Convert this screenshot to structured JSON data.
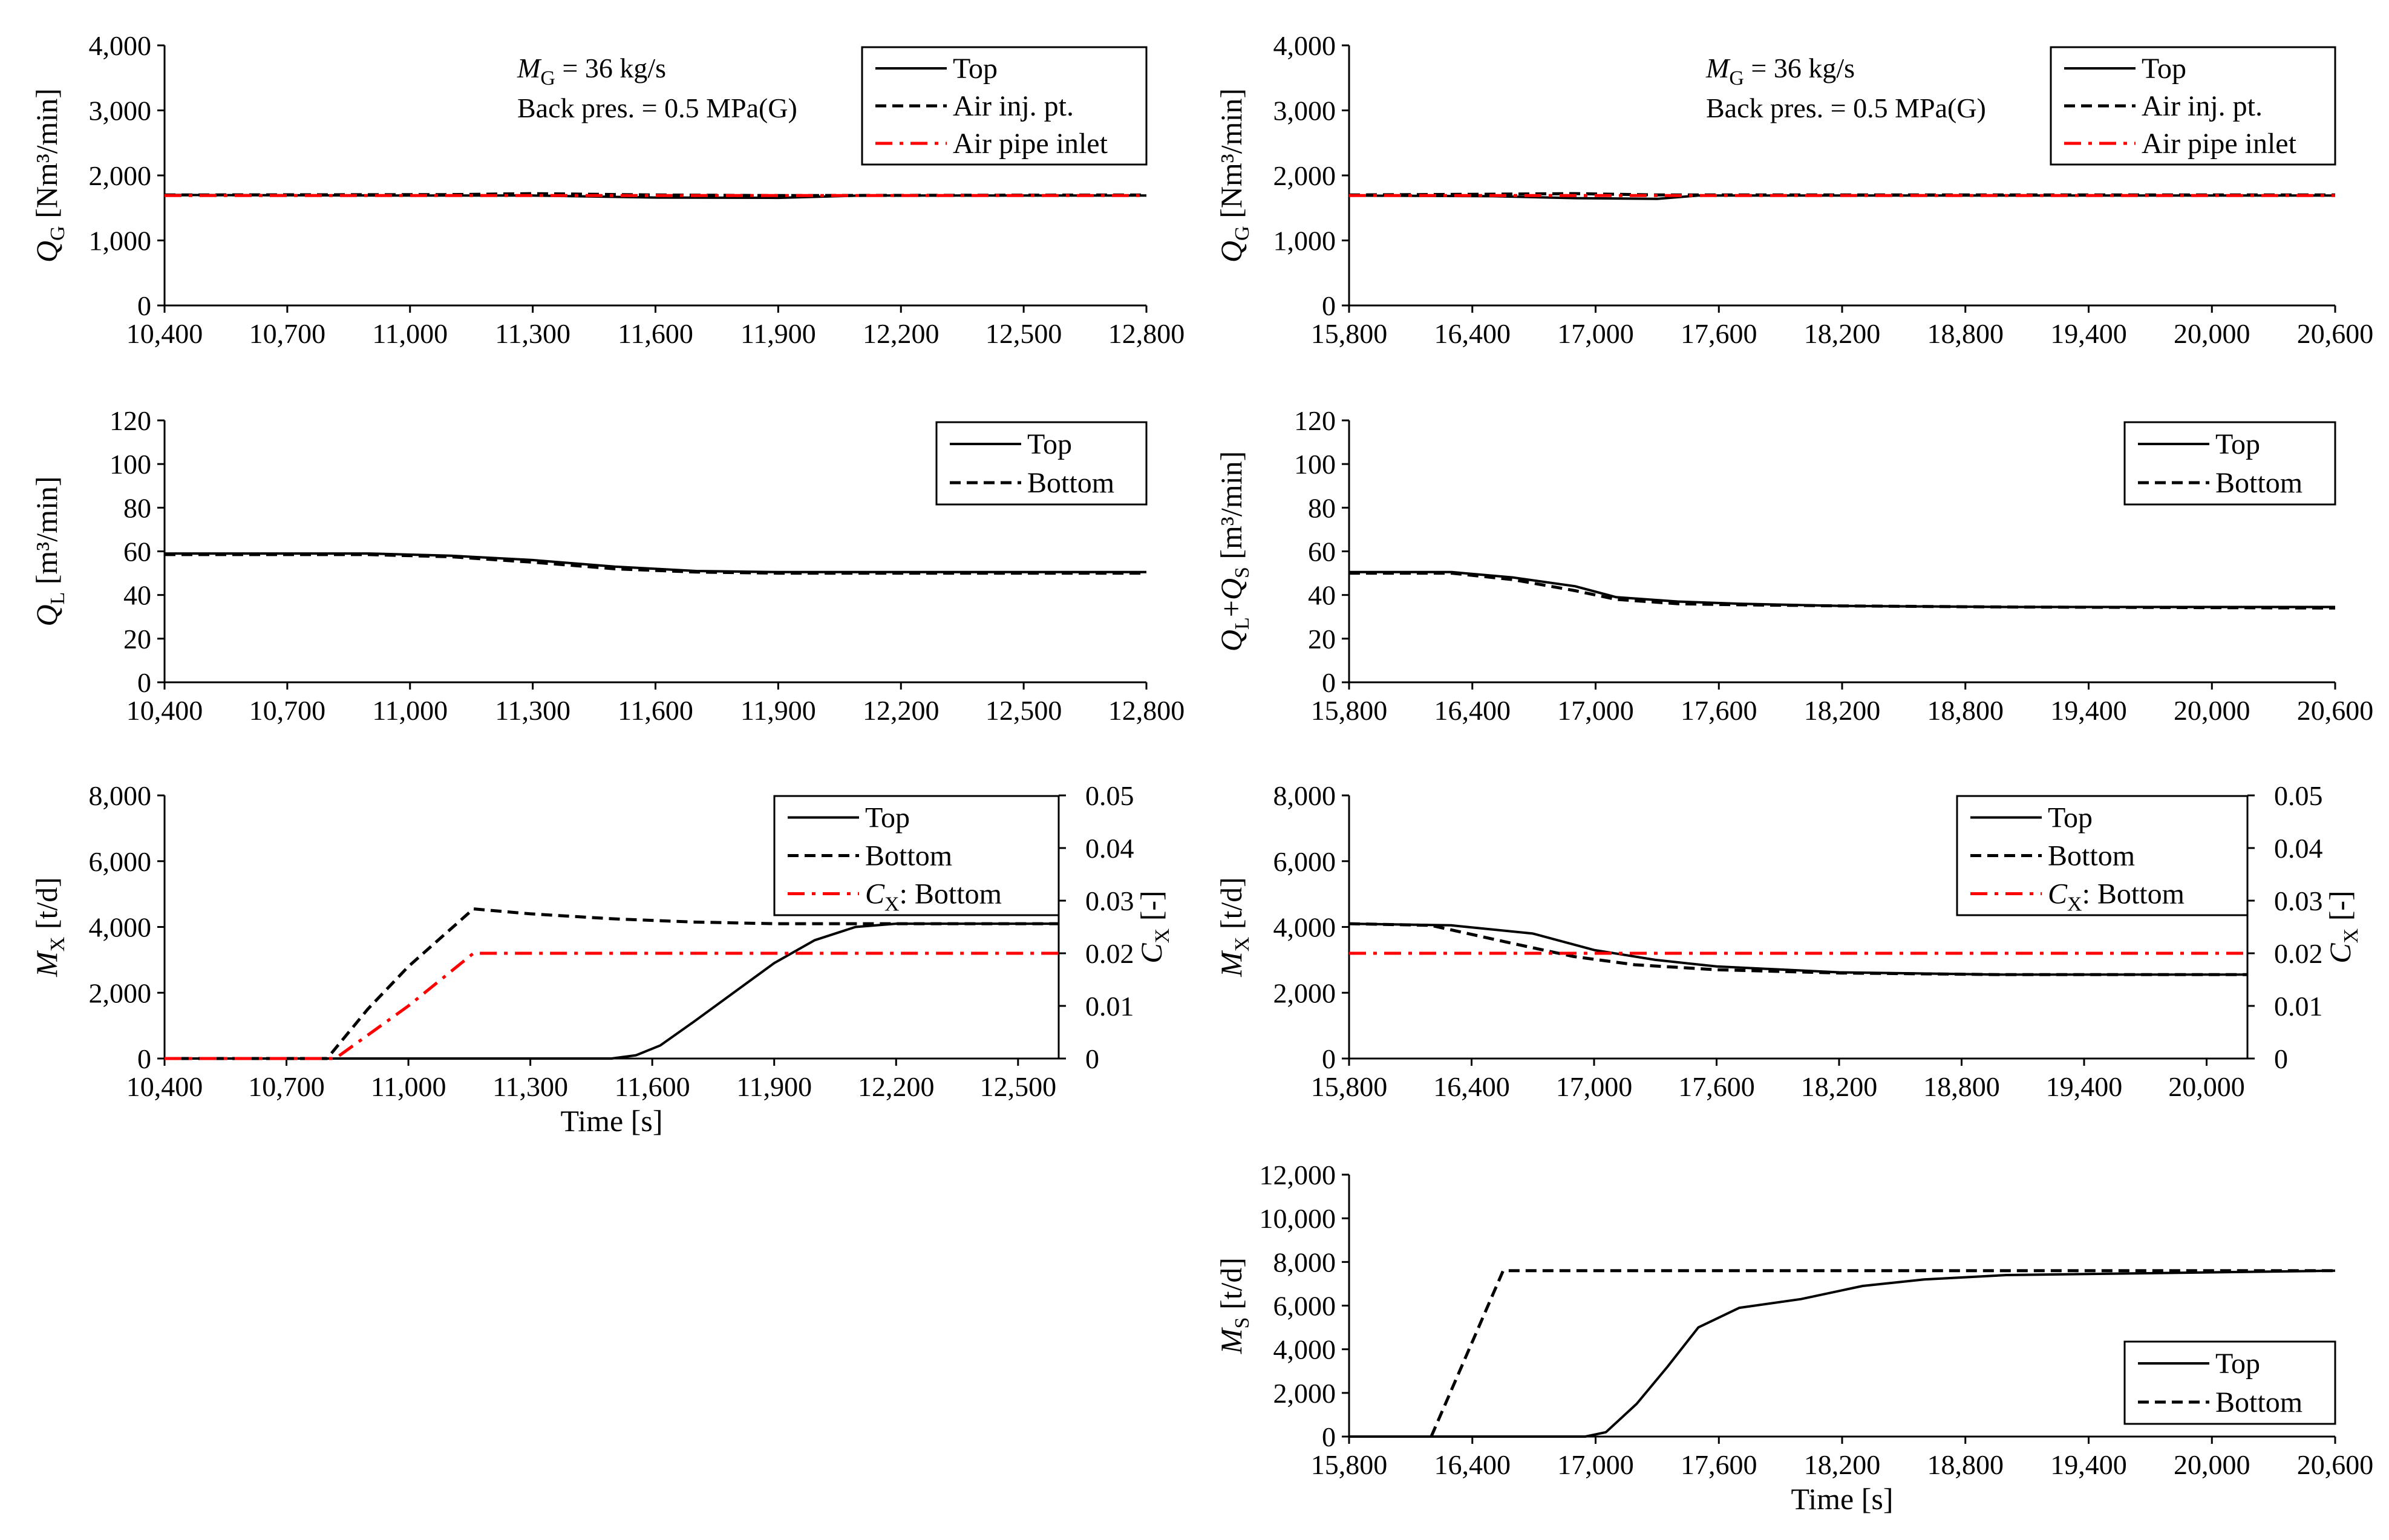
{
  "chart_data": [
    {
      "id": "qg_left",
      "type": "line",
      "ylabel": {
        "main": "Q",
        "sub": "G",
        "unit": " [Nm³/min]"
      },
      "xlim": [
        10400,
        12800
      ],
      "x_ticks": [
        10400,
        10700,
        11000,
        11300,
        11600,
        11900,
        12200,
        12500,
        12800
      ],
      "ylim": [
        0,
        4000
      ],
      "y_ticks": [
        0,
        1000,
        2000,
        3000,
        4000
      ],
      "legend": "top-right",
      "annotation": {
        "line1_var": "M",
        "line1_sub": "G",
        "line1_rest": " = 36 kg/s",
        "line2": "Back pres. = 0.5 MPa(G)"
      },
      "series": [
        {
          "name": "Top",
          "style": "solid",
          "color": "#000000",
          "points": [
            [
              10400,
              1700
            ],
            [
              11000,
              1690
            ],
            [
              11300,
              1690
            ],
            [
              11600,
              1660
            ],
            [
              11900,
              1655
            ],
            [
              12100,
              1690
            ],
            [
              12800,
              1690
            ]
          ]
        },
        {
          "name": "Air inj. pt.",
          "style": "dash",
          "color": "#000000",
          "points": [
            [
              10400,
              1700
            ],
            [
              11100,
              1705
            ],
            [
              11300,
              1720
            ],
            [
              11600,
              1700
            ],
            [
              11900,
              1690
            ],
            [
              12800,
              1700
            ]
          ]
        },
        {
          "name": "Air pipe inlet",
          "style": "dashdot",
          "color": "#ff0000",
          "points": [
            [
              10400,
              1690
            ],
            [
              12800,
              1690
            ]
          ]
        }
      ]
    },
    {
      "id": "qg_right",
      "type": "line",
      "ylabel": {
        "main": "Q",
        "sub": "G",
        "unit": " [Nm³/min]"
      },
      "xlim": [
        15800,
        20600
      ],
      "x_ticks": [
        15800,
        16400,
        17000,
        17600,
        18200,
        18800,
        19400,
        20000,
        20600
      ],
      "ylim": [
        0,
        4000
      ],
      "y_ticks": [
        0,
        1000,
        2000,
        3000,
        4000
      ],
      "legend": "top-right",
      "annotation": {
        "line1_var": "M",
        "line1_sub": "G",
        "line1_rest": " = 36 kg/s",
        "line2": "Back pres. = 0.5 MPa(G)"
      },
      "series": [
        {
          "name": "Top",
          "style": "solid",
          "color": "#000000",
          "points": [
            [
              15800,
              1690
            ],
            [
              16500,
              1680
            ],
            [
              16900,
              1650
            ],
            [
              17300,
              1640
            ],
            [
              17500,
              1690
            ],
            [
              20600,
              1690
            ]
          ]
        },
        {
          "name": "Air inj. pt.",
          "style": "dash",
          "color": "#000000",
          "points": [
            [
              15800,
              1700
            ],
            [
              16400,
              1710
            ],
            [
              16900,
              1720
            ],
            [
              17300,
              1700
            ],
            [
              20600,
              1700
            ]
          ]
        },
        {
          "name": "Air pipe inlet",
          "style": "dashdot",
          "color": "#ff0000",
          "points": [
            [
              15800,
              1690
            ],
            [
              20600,
              1690
            ]
          ]
        }
      ]
    },
    {
      "id": "ql_left",
      "type": "line",
      "ylabel": {
        "main": "Q",
        "sub": "L",
        "unit": " [m³/min]"
      },
      "xlim": [
        10400,
        12800
      ],
      "x_ticks": [
        10400,
        10700,
        11000,
        11300,
        11600,
        11900,
        12200,
        12500,
        12800
      ],
      "ylim": [
        0,
        120
      ],
      "y_ticks": [
        0,
        20,
        40,
        60,
        80,
        100,
        120
      ],
      "legend": "top-right",
      "series": [
        {
          "name": "Top",
          "style": "solid",
          "color": "#000000",
          "points": [
            [
              10400,
              59
            ],
            [
              10900,
              59
            ],
            [
              11100,
              58
            ],
            [
              11300,
              56
            ],
            [
              11500,
              53
            ],
            [
              11700,
              51
            ],
            [
              11900,
              50.5
            ],
            [
              12800,
              50.5
            ]
          ]
        },
        {
          "name": "Bottom",
          "style": "dash",
          "color": "#000000",
          "points": [
            [
              10400,
              58.5
            ],
            [
              10900,
              58.5
            ],
            [
              11100,
              57.5
            ],
            [
              11300,
              55
            ],
            [
              11500,
              52
            ],
            [
              11700,
              50.5
            ],
            [
              11900,
              50
            ],
            [
              12800,
              50
            ]
          ]
        }
      ]
    },
    {
      "id": "qlqs_right",
      "type": "line",
      "ylabel": {
        "main": "Q",
        "sub": "L",
        "plus": "+",
        "main2": "Q",
        "sub2": "S",
        "unit": " [m³/min]"
      },
      "xlim": [
        15800,
        20600
      ],
      "x_ticks": [
        15800,
        16400,
        17000,
        17600,
        18200,
        18800,
        19400,
        20000,
        20600
      ],
      "ylim": [
        0,
        120
      ],
      "y_ticks": [
        0,
        20,
        40,
        60,
        80,
        100,
        120
      ],
      "legend": "top-right",
      "series": [
        {
          "name": "Top",
          "style": "solid",
          "color": "#000000",
          "points": [
            [
              15800,
              50.5
            ],
            [
              16300,
              50.5
            ],
            [
              16600,
              48
            ],
            [
              16900,
              44
            ],
            [
              17100,
              39
            ],
            [
              17400,
              37
            ],
            [
              17700,
              36
            ],
            [
              18200,
              35
            ],
            [
              19000,
              34.5
            ],
            [
              20600,
              34.5
            ]
          ]
        },
        {
          "name": "Bottom",
          "style": "dash",
          "color": "#000000",
          "points": [
            [
              15800,
              50
            ],
            [
              16300,
              50
            ],
            [
              16600,
              47
            ],
            [
              16900,
              42
            ],
            [
              17100,
              38
            ],
            [
              17400,
              36
            ],
            [
              17700,
              35.5
            ],
            [
              18200,
              35
            ],
            [
              19000,
              34.5
            ],
            [
              20600,
              34
            ]
          ]
        }
      ]
    },
    {
      "id": "mx_left",
      "type": "line",
      "ylabel": {
        "main": "M",
        "sub": "X",
        "unit": " [t/d]"
      },
      "y2label": {
        "main": "C",
        "sub": "X",
        "unit": " [-]"
      },
      "xlim": [
        10400,
        12600
      ],
      "x_ticks": [
        10400,
        10700,
        11000,
        11300,
        11600,
        11900,
        12200,
        12500
      ],
      "ylim": [
        0,
        8000
      ],
      "y_ticks": [
        0,
        2000,
        4000,
        6000,
        8000
      ],
      "y2lim": [
        0,
        0.05
      ],
      "y2_ticks": [
        "0",
        "0.01",
        "0.02",
        "0.03",
        "0.04",
        "0.05"
      ],
      "xlabel": "Time [s]",
      "legend": "top-right",
      "series": [
        {
          "name": "Top",
          "style": "solid",
          "color": "#000000",
          "axis": "y",
          "points": [
            [
              10400,
              0
            ],
            [
              11500,
              0
            ],
            [
              11560,
              100
            ],
            [
              11620,
              400
            ],
            [
              11700,
              1100
            ],
            [
              11800,
              2000
            ],
            [
              11900,
              2900
            ],
            [
              12000,
              3600
            ],
            [
              12100,
              4000
            ],
            [
              12200,
              4100
            ],
            [
              12600,
              4100
            ]
          ]
        },
        {
          "name": "Bottom",
          "style": "dash",
          "color": "#000000",
          "axis": "y",
          "points": [
            [
              10400,
              0
            ],
            [
              10800,
              0
            ],
            [
              10900,
              1500
            ],
            [
              11000,
              2800
            ],
            [
              11160,
              4550
            ],
            [
              11300,
              4400
            ],
            [
              11500,
              4250
            ],
            [
              11700,
              4150
            ],
            [
              11900,
              4100
            ],
            [
              12600,
              4100
            ]
          ]
        },
        {
          "name": "C",
          "name_sub": "X",
          "name_rest": ": Bottom",
          "style": "dashdot",
          "color": "#ff0000",
          "axis": "y2",
          "points": [
            [
              10400,
              0
            ],
            [
              10820,
              0
            ],
            [
              11000,
              0.01
            ],
            [
              11160,
              0.02
            ],
            [
              12600,
              0.02
            ]
          ]
        }
      ]
    },
    {
      "id": "mx_right",
      "type": "line",
      "ylabel": {
        "main": "M",
        "sub": "X",
        "unit": " [t/d]"
      },
      "y2label": {
        "main": "C",
        "sub": "X",
        "unit": " [-]"
      },
      "xlim": [
        15800,
        20200
      ],
      "x_ticks": [
        15800,
        16400,
        17000,
        17600,
        18200,
        18800,
        19400,
        20000
      ],
      "ylim": [
        0,
        8000
      ],
      "y_ticks": [
        0,
        2000,
        4000,
        6000,
        8000
      ],
      "y2lim": [
        0,
        0.05
      ],
      "y2_ticks": [
        "0",
        "0.01",
        "0.02",
        "0.03",
        "0.04",
        "0.05"
      ],
      "legend": "top-right",
      "series": [
        {
          "name": "Top",
          "style": "solid",
          "color": "#000000",
          "axis": "y",
          "points": [
            [
              15800,
              4100
            ],
            [
              16300,
              4050
            ],
            [
              16700,
              3800
            ],
            [
              17000,
              3300
            ],
            [
              17300,
              3000
            ],
            [
              17600,
              2800
            ],
            [
              18200,
              2620
            ],
            [
              19000,
              2550
            ],
            [
              20200,
              2550
            ]
          ]
        },
        {
          "name": "Bottom",
          "style": "dash",
          "color": "#000000",
          "axis": "y",
          "points": [
            [
              15800,
              4100
            ],
            [
              16200,
              4050
            ],
            [
              16600,
              3500
            ],
            [
              16900,
              3100
            ],
            [
              17200,
              2850
            ],
            [
              17600,
              2700
            ],
            [
              18200,
              2600
            ],
            [
              19000,
              2550
            ],
            [
              20200,
              2550
            ]
          ]
        },
        {
          "name": "C",
          "name_sub": "X",
          "name_rest": ": Bottom",
          "style": "dashdot",
          "color": "#ff0000",
          "axis": "y2",
          "points": [
            [
              15800,
              0.02
            ],
            [
              20200,
              0.02
            ]
          ]
        }
      ]
    },
    {
      "id": "ms_right",
      "type": "line",
      "ylabel": {
        "main": "M",
        "sub": "S",
        "unit": " [t/d]"
      },
      "xlim": [
        15800,
        20600
      ],
      "x_ticks": [
        15800,
        16400,
        17000,
        17600,
        18200,
        18800,
        19400,
        20000,
        20600
      ],
      "ylim": [
        0,
        12000
      ],
      "y_ticks": [
        0,
        2000,
        4000,
        6000,
        8000,
        10000,
        12000
      ],
      "xlabel": "Time [s]",
      "legend": "bottom-right",
      "series": [
        {
          "name": "Top",
          "style": "solid",
          "color": "#000000",
          "points": [
            [
              15800,
              0
            ],
            [
              16950,
              0
            ],
            [
              17050,
              200
            ],
            [
              17200,
              1500
            ],
            [
              17350,
              3200
            ],
            [
              17500,
              5000
            ],
            [
              17700,
              5900
            ],
            [
              18000,
              6300
            ],
            [
              18300,
              6900
            ],
            [
              18600,
              7200
            ],
            [
              19000,
              7400
            ],
            [
              20600,
              7600
            ]
          ]
        },
        {
          "name": "Bottom",
          "style": "dash",
          "color": "#000000",
          "points": [
            [
              16200,
              0
            ],
            [
              16550,
              7600
            ],
            [
              20600,
              7600
            ]
          ]
        }
      ]
    }
  ]
}
